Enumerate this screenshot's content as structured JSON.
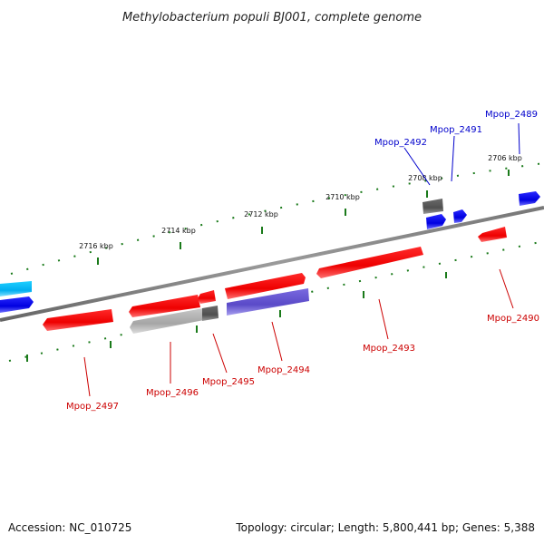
{
  "title": "Methylobacterium populi BJ001, complete genome",
  "accession": "Accession: NC_010725",
  "summary": "Topology: circular; Length: 5,800,441 bp; Genes: 5,388",
  "colors": {
    "forward_gene": "#ff0000",
    "reverse_gene": "#0000ff",
    "pseudo_gene": "#9a9a9a",
    "rna_gene": "#606060",
    "misc_gene": "#6a5acd",
    "cyan_gene": "#00bfff",
    "forward_label": "#cc0000",
    "reverse_label": "#0000cc",
    "tick": "#1a7a1a",
    "backbone": "#888888"
  },
  "kbp_marks": [
    "2706 kbp",
    "2708 kbp",
    "2710 kbp",
    "2712 kbp",
    "2714 kbp",
    "2716 kbp"
  ],
  "gene_labels": [
    "Mpop_2489",
    "Mpop_2490",
    "Mpop_2491",
    "Mpop_2492",
    "Mpop_2493",
    "Mpop_2494",
    "Mpop_2495",
    "Mpop_2496",
    "Mpop_2497"
  ]
}
